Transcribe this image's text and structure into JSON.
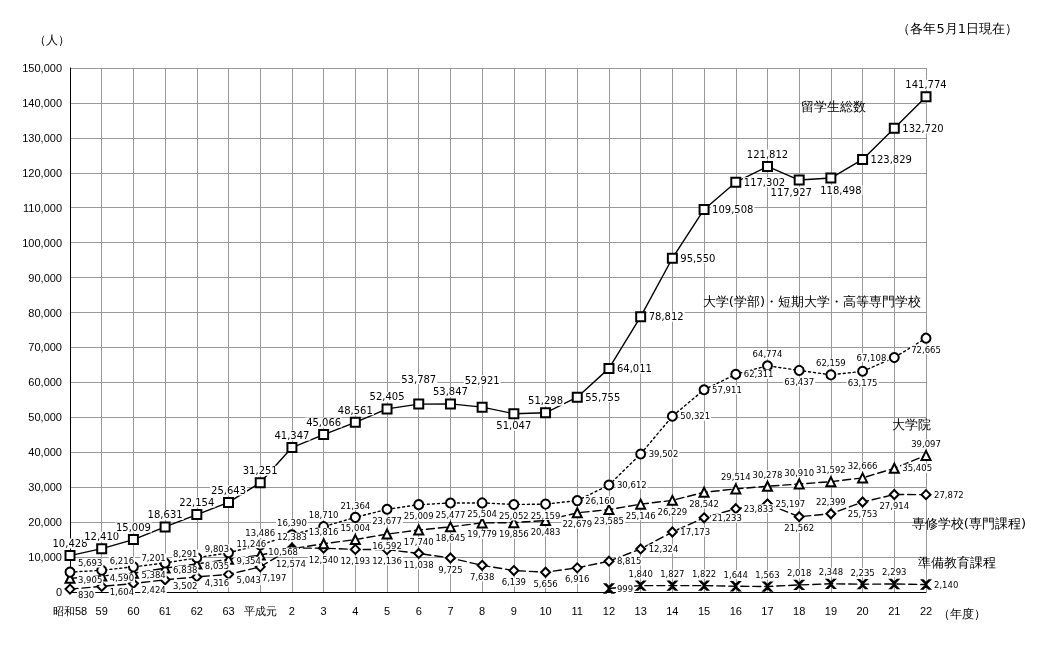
{
  "chart_data": {
    "type": "line",
    "ylabel": "（人）",
    "xlabel": "（年度）",
    "annotations": [
      "（各年5月1日現在）"
    ],
    "categories": [
      "昭和58",
      "59",
      "60",
      "61",
      "62",
      "63",
      "平成元",
      "2",
      "3",
      "4",
      "5",
      "6",
      "7",
      "8",
      "9",
      "10",
      "11",
      "12",
      "13",
      "14",
      "15",
      "16",
      "17",
      "18",
      "19",
      "20",
      "21",
      "22"
    ],
    "ylim": [
      0,
      150000
    ],
    "yticks": [
      {
        "value": 0,
        "label": "0"
      },
      {
        "value": 10000,
        "label": "10,000"
      },
      {
        "value": 20000,
        "label": "20,000"
      },
      {
        "value": 30000,
        "label": "30,000"
      },
      {
        "value": 40000,
        "label": "40,000"
      },
      {
        "value": 50000,
        "label": "50,000"
      },
      {
        "value": 60000,
        "label": "60,000"
      },
      {
        "value": 70000,
        "label": "70,000"
      },
      {
        "value": 80000,
        "label": "80,000"
      },
      {
        "value": 90000,
        "label": "90,000"
      },
      {
        "value": 100000,
        "label": "100,000"
      },
      {
        "value": 110000,
        "label": "110,000"
      },
      {
        "value": 120000,
        "label": "120,000"
      },
      {
        "value": 130000,
        "label": "130,000"
      },
      {
        "value": 140000,
        "label": "140,000"
      },
      {
        "value": 150000,
        "label": "150,000"
      }
    ],
    "grid": true,
    "legend": false,
    "data_labels": true,
    "series": [
      {
        "name": "留学生総数",
        "color": "#000000",
        "marker": "square",
        "line_style": "solid",
        "values": [
          10428,
          12410,
          15009,
          18631,
          22154,
          25643,
          31251,
          41347,
          45066,
          48561,
          52405,
          53787,
          53847,
          52921,
          51047,
          51298,
          55755,
          64011,
          78812,
          95550,
          109508,
          117302,
          121812,
          117927,
          118498,
          123829,
          132720,
          141774
        ],
        "value_labels": [
          "10,428",
          "12,410",
          "15,009",
          "18,631",
          "22,154",
          "25,643",
          "31,251",
          "41,347",
          "45,066",
          "48,561",
          "52,405",
          "53,787",
          "53,847",
          "52,921",
          "51,047",
          "51,298",
          "55,755",
          "64,011",
          "78,812",
          "95,550",
          "109,508",
          "117,302",
          "121,812",
          "117,927",
          "118,498",
          "123,829",
          "132,720",
          "141,774"
        ]
      },
      {
        "name": "大学(学部)・短期大学・高等専門学校",
        "color": "#000000",
        "marker": "circle",
        "line_style": "dotted",
        "values": [
          5693,
          6216,
          7201,
          8291,
          9803,
          11246,
          13486,
          16390,
          18710,
          21364,
          23677,
          25009,
          25477,
          25504,
          25052,
          25159,
          26160,
          30612,
          39502,
          50321,
          57911,
          62311,
          64774,
          63437,
          62159,
          63175,
          67108,
          72665
        ],
        "value_labels": [
          "5,693",
          "6,216",
          "7,201",
          "8,291",
          "9,803",
          "11,246",
          "13,486",
          "16,390",
          "18,710",
          "21,364",
          "23,677",
          "25,009",
          "25,477",
          "25,504",
          "25,052",
          "25,159",
          "26,160",
          "30,612",
          "39,502",
          "50,321",
          "57,911",
          "62,311",
          "64,774",
          "63,437",
          "62,159",
          "63,175",
          "67,108",
          "72,665"
        ]
      },
      {
        "name": "大学院",
        "color": "#000000",
        "marker": "triangle",
        "line_style": "dashed",
        "values": [
          3905,
          4590,
          5384,
          6838,
          8035,
          9354,
          10568,
          12383,
          13816,
          15004,
          16592,
          17740,
          18645,
          19779,
          19856,
          20483,
          22679,
          23585,
          25146,
          26229,
          28542,
          29514,
          30278,
          30910,
          31592,
          32666,
          35405,
          39097
        ],
        "value_labels": [
          "3,905",
          "4,590",
          "5,384",
          "6,838",
          "8,035",
          "9,354",
          "10,568",
          "12,383",
          "13,816",
          "15,004",
          "16,592",
          "17,740",
          "18,645",
          "19,779",
          "19,856",
          "20,483",
          "22,679",
          "23,585",
          "25,146",
          "26,229",
          "28,542",
          "29,514",
          "30,278",
          "30,910",
          "31,592",
          "32,666",
          "35,405",
          "39,097"
        ]
      },
      {
        "name": "専修学校(専門課程)",
        "color": "#000000",
        "marker": "diamond",
        "line_style": "dashed",
        "values": [
          830,
          1604,
          2424,
          3502,
          4316,
          5043,
          7197,
          12574,
          12540,
          12193,
          12136,
          11038,
          9725,
          7638,
          6139,
          5656,
          6916,
          8815,
          12324,
          17173,
          21233,
          23833,
          25197,
          21562,
          22399,
          25753,
          27914,
          27872
        ],
        "value_labels": [
          "830",
          "1,604",
          "2,424",
          "3,502",
          "4,316",
          "5,043",
          "7,197",
          "12,574",
          "12,540",
          "12,193",
          "12,136",
          "11,038",
          "9,725",
          "7,638",
          "6,139",
          "5,656",
          "6,916",
          "8,815",
          "12,324",
          "17,173",
          "21,233",
          "23,833",
          "25,197",
          "21,562",
          "22,399",
          "25,753",
          "27,914",
          "27,872"
        ]
      },
      {
        "name": "準備教育課程",
        "color": "#000000",
        "marker": "cross",
        "line_style": "dashed",
        "values": [
          null,
          null,
          null,
          null,
          null,
          null,
          null,
          null,
          null,
          null,
          null,
          null,
          null,
          null,
          null,
          null,
          null,
          999,
          1840,
          1827,
          1822,
          1644,
          1563,
          2018,
          2348,
          2235,
          2293,
          2140
        ],
        "value_labels": [
          null,
          null,
          null,
          null,
          null,
          null,
          null,
          null,
          null,
          null,
          null,
          null,
          null,
          null,
          null,
          null,
          null,
          "999",
          "1,840",
          "1,827",
          "1,822",
          "1,644",
          "1,563",
          "2,018",
          "2,348",
          "2,235",
          "2,293",
          "2,140"
        ]
      }
    ]
  }
}
